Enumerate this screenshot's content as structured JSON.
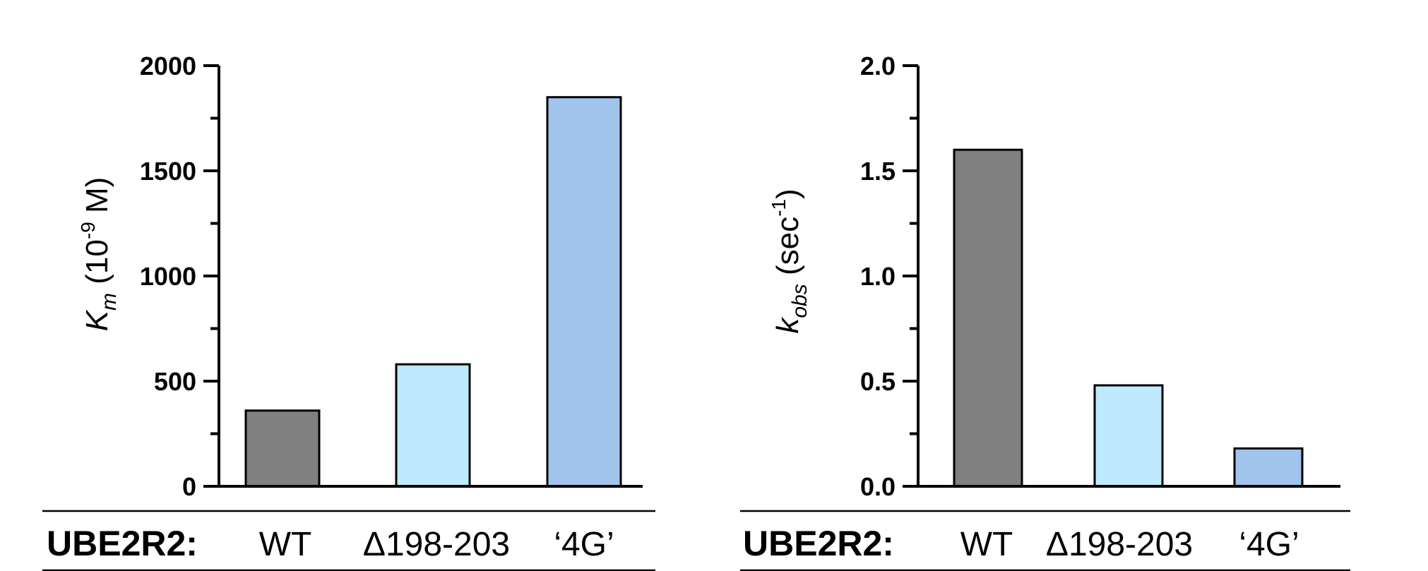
{
  "chart_data": [
    {
      "type": "bar",
      "categories": [
        "WT",
        "Δ198-203",
        "‘4G’"
      ],
      "values": [
        360,
        580,
        1850
      ],
      "colors": [
        "#808080",
        "#bfe9fc",
        "#a0c4ec"
      ],
      "ylim": [
        0,
        2000
      ],
      "yticks": [
        "0",
        "500",
        "1000",
        "1500",
        "2000"
      ],
      "ylabel": {
        "main": "K",
        "sub": "m",
        "rest_open": " (10",
        "sup": "-9",
        "rest_close": " M)"
      },
      "xlabel_prefix": "UBE2R2:"
    },
    {
      "type": "bar",
      "categories": [
        "WT",
        "Δ198-203",
        "‘4G’"
      ],
      "values": [
        1.6,
        0.48,
        0.18
      ],
      "colors": [
        "#808080",
        "#bfe9fc",
        "#a0c4ec"
      ],
      "ylim": [
        0,
        2.0
      ],
      "yticks": [
        "0.0",
        "0.5",
        "1.0",
        "1.5",
        "2.0"
      ],
      "ylabel": {
        "main": "k",
        "sub": "obs",
        "rest_open": " (sec",
        "sup": "-1",
        "rest_close": ")"
      },
      "xlabel_prefix": "UBE2R2:"
    }
  ]
}
